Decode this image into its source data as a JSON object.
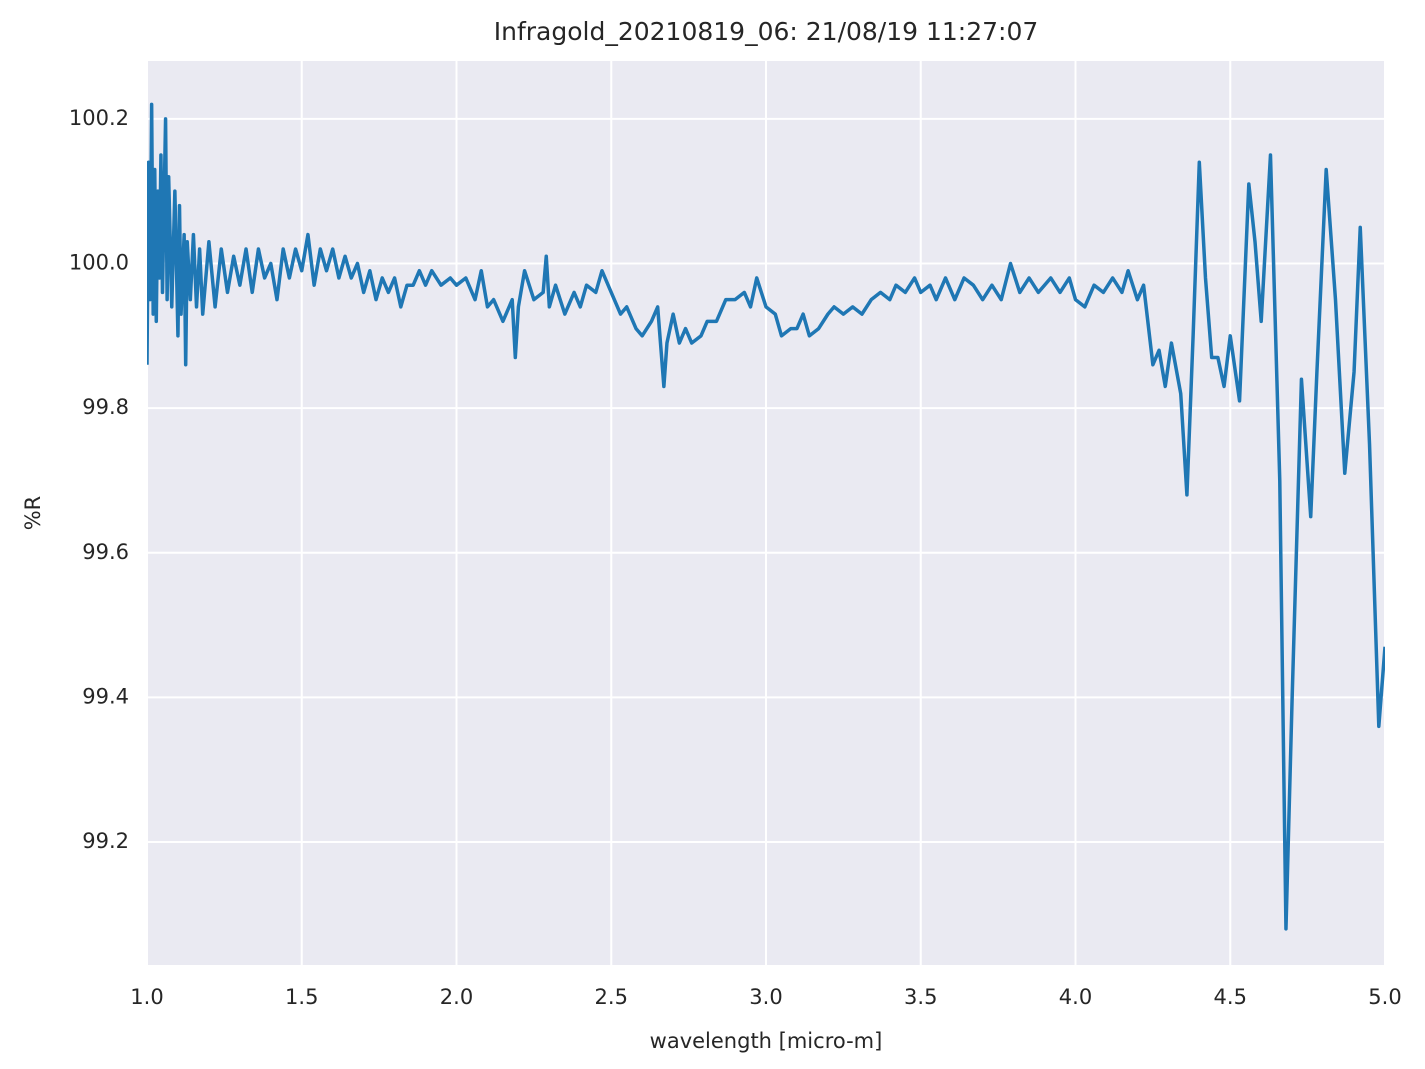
{
  "chart_data": {
    "type": "line",
    "title": "Infragold_20210819_06:  21/08/19 11:27:07",
    "xlabel": "wavelength [micro-m]",
    "ylabel": "%R",
    "x": [
      1.0,
      1.005,
      1.01,
      1.015,
      1.02,
      1.025,
      1.03,
      1.035,
      1.04,
      1.045,
      1.05,
      1.055,
      1.06,
      1.065,
      1.07,
      1.08,
      1.09,
      1.1,
      1.105,
      1.11,
      1.12,
      1.125,
      1.13,
      1.14,
      1.15,
      1.16,
      1.17,
      1.18,
      1.2,
      1.22,
      1.24,
      1.26,
      1.28,
      1.3,
      1.32,
      1.34,
      1.36,
      1.38,
      1.4,
      1.42,
      1.44,
      1.46,
      1.48,
      1.5,
      1.52,
      1.54,
      1.56,
      1.58,
      1.6,
      1.62,
      1.64,
      1.66,
      1.68,
      1.7,
      1.72,
      1.74,
      1.76,
      1.78,
      1.8,
      1.82,
      1.84,
      1.86,
      1.88,
      1.9,
      1.92,
      1.95,
      1.98,
      2.0,
      2.03,
      2.06,
      2.08,
      2.1,
      2.12,
      2.15,
      2.18,
      2.19,
      2.2,
      2.22,
      2.25,
      2.28,
      2.29,
      2.3,
      2.32,
      2.35,
      2.38,
      2.4,
      2.42,
      2.45,
      2.47,
      2.5,
      2.53,
      2.55,
      2.58,
      2.6,
      2.63,
      2.65,
      2.67,
      2.68,
      2.7,
      2.72,
      2.74,
      2.76,
      2.79,
      2.81,
      2.84,
      2.87,
      2.9,
      2.93,
      2.95,
      2.97,
      3.0,
      3.03,
      3.05,
      3.08,
      3.1,
      3.12,
      3.14,
      3.17,
      3.2,
      3.22,
      3.25,
      3.28,
      3.31,
      3.34,
      3.37,
      3.4,
      3.42,
      3.45,
      3.48,
      3.5,
      3.53,
      3.55,
      3.58,
      3.61,
      3.64,
      3.67,
      3.7,
      3.73,
      3.76,
      3.79,
      3.82,
      3.85,
      3.88,
      3.92,
      3.95,
      3.98,
      4.0,
      4.03,
      4.06,
      4.09,
      4.12,
      4.15,
      4.17,
      4.2,
      4.22,
      4.25,
      4.27,
      4.29,
      4.31,
      4.34,
      4.36,
      4.38,
      4.4,
      4.42,
      4.44,
      4.46,
      4.48,
      4.5,
      4.53,
      4.56,
      4.58,
      4.6,
      4.63,
      4.66,
      4.68,
      4.7,
      4.73,
      4.76,
      4.78,
      4.81,
      4.84,
      4.87,
      4.9,
      4.92,
      4.95,
      4.98,
      5.0
    ],
    "series": [
      {
        "color": "#1f77b4",
        "values": [
          99.86,
          100.14,
          99.95,
          100.22,
          99.93,
          100.13,
          99.92,
          100.1,
          99.98,
          100.15,
          99.96,
          100.08,
          100.2,
          99.95,
          100.12,
          99.94,
          100.1,
          99.9,
          100.08,
          99.93,
          100.04,
          99.86,
          100.03,
          99.95,
          100.04,
          99.94,
          100.02,
          99.93,
          100.03,
          99.94,
          100.02,
          99.96,
          100.01,
          99.97,
          100.02,
          99.96,
          100.02,
          99.98,
          100.0,
          99.95,
          100.02,
          99.98,
          100.02,
          99.99,
          100.04,
          99.97,
          100.02,
          99.99,
          100.02,
          99.98,
          100.01,
          99.98,
          100.0,
          99.96,
          99.99,
          99.95,
          99.98,
          99.96,
          99.98,
          99.94,
          99.97,
          99.97,
          99.99,
          99.97,
          99.99,
          99.97,
          99.98,
          99.97,
          99.98,
          99.95,
          99.99,
          99.94,
          99.95,
          99.92,
          99.95,
          99.87,
          99.94,
          99.99,
          99.95,
          99.96,
          100.01,
          99.94,
          99.97,
          99.93,
          99.96,
          99.94,
          99.97,
          99.96,
          99.99,
          99.96,
          99.93,
          99.94,
          99.91,
          99.9,
          99.92,
          99.94,
          99.83,
          99.89,
          99.93,
          99.89,
          99.91,
          99.89,
          99.9,
          99.92,
          99.92,
          99.95,
          99.95,
          99.96,
          99.94,
          99.98,
          99.94,
          99.93,
          99.9,
          99.91,
          99.91,
          99.93,
          99.9,
          99.91,
          99.93,
          99.94,
          99.93,
          99.94,
          99.93,
          99.95,
          99.96,
          99.95,
          99.97,
          99.96,
          99.98,
          99.96,
          99.97,
          99.95,
          99.98,
          99.95,
          99.98,
          99.97,
          99.95,
          99.97,
          99.95,
          100.0,
          99.96,
          99.98,
          99.96,
          99.98,
          99.96,
          99.98,
          99.95,
          99.94,
          99.97,
          99.96,
          99.98,
          99.96,
          99.99,
          99.95,
          99.97,
          99.86,
          99.88,
          99.83,
          99.89,
          99.82,
          99.68,
          99.9,
          100.14,
          99.98,
          99.87,
          99.87,
          99.83,
          99.9,
          99.81,
          100.11,
          100.03,
          99.92,
          100.15,
          99.7,
          99.08,
          99.4,
          99.84,
          99.65,
          99.85,
          100.13,
          99.95,
          99.71,
          99.85,
          100.05,
          99.75,
          99.36,
          99.47
        ]
      }
    ],
    "xlim": [
      1.0,
      5.0
    ],
    "ylim": [
      99.03,
      100.28
    ],
    "xticks": [
      {
        "value": 1,
        "label": "1.0"
      },
      1.5,
      {
        "value": 2,
        "label": "2.0"
      },
      2.5,
      {
        "value": 3,
        "label": "3.0"
      },
      3.5,
      {
        "value": 4,
        "label": "4.0"
      },
      4.5,
      {
        "value": 5,
        "label": "5.0"
      }
    ],
    "yticks": [
      99.2,
      99.4,
      99.6,
      99.8,
      {
        "value": 100,
        "label": "100.0"
      },
      100.2
    ],
    "grid": true,
    "background": "#eaeaf2"
  }
}
